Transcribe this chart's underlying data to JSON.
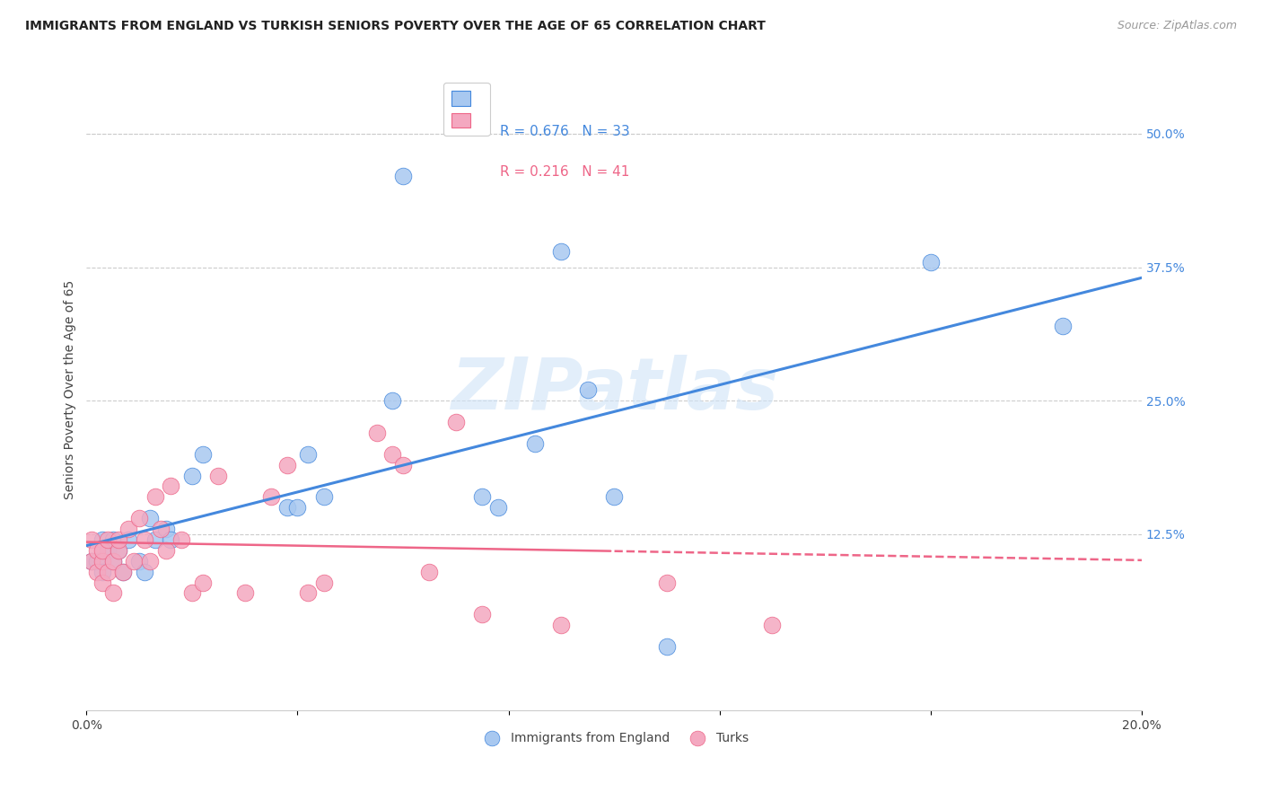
{
  "title": "IMMIGRANTS FROM ENGLAND VS TURKISH SENIORS POVERTY OVER THE AGE OF 65 CORRELATION CHART",
  "source": "Source: ZipAtlas.com",
  "ylabel": "Seniors Poverty Over the Age of 65",
  "xlim": [
    0.0,
    0.2
  ],
  "ylim": [
    -0.04,
    0.56
  ],
  "xtick_positions": [
    0.0,
    0.04,
    0.08,
    0.12,
    0.16,
    0.2
  ],
  "xtick_labels": [
    "0.0%",
    "",
    "",
    "",
    "",
    "20.0%"
  ],
  "ytick_vals": [
    0.5,
    0.375,
    0.25,
    0.125
  ],
  "ytick_labels": [
    "50.0%",
    "37.5%",
    "25.0%",
    "12.5%"
  ],
  "england_R": 0.676,
  "england_N": 33,
  "turks_R": 0.216,
  "turks_N": 41,
  "england_color": "#a8c8f0",
  "turks_color": "#f4a8c0",
  "england_line_color": "#4488dd",
  "turks_line_color": "#ee6688",
  "background_color": "#ffffff",
  "grid_color": "#cccccc",
  "watermark_color": "#d0e4f8",
  "england_x": [
    0.001,
    0.002,
    0.003,
    0.003,
    0.004,
    0.005,
    0.005,
    0.006,
    0.007,
    0.008,
    0.01,
    0.011,
    0.012,
    0.013,
    0.015,
    0.016,
    0.02,
    0.022,
    0.038,
    0.04,
    0.042,
    0.045,
    0.058,
    0.06,
    0.075,
    0.078,
    0.085,
    0.09,
    0.095,
    0.1,
    0.11,
    0.16,
    0.185
  ],
  "england_y": [
    0.1,
    0.1,
    0.09,
    0.12,
    0.11,
    0.1,
    0.12,
    0.11,
    0.09,
    0.12,
    0.1,
    0.09,
    0.14,
    0.12,
    0.13,
    0.12,
    0.18,
    0.2,
    0.15,
    0.15,
    0.2,
    0.16,
    0.25,
    0.46,
    0.16,
    0.15,
    0.21,
    0.39,
    0.26,
    0.16,
    0.02,
    0.38,
    0.32
  ],
  "turks_x": [
    0.001,
    0.001,
    0.002,
    0.002,
    0.003,
    0.003,
    0.003,
    0.004,
    0.004,
    0.005,
    0.005,
    0.006,
    0.006,
    0.007,
    0.008,
    0.009,
    0.01,
    0.011,
    0.012,
    0.013,
    0.014,
    0.015,
    0.016,
    0.018,
    0.02,
    0.022,
    0.025,
    0.03,
    0.035,
    0.038,
    0.042,
    0.045,
    0.055,
    0.058,
    0.06,
    0.065,
    0.07,
    0.075,
    0.09,
    0.11,
    0.13
  ],
  "turks_y": [
    0.1,
    0.12,
    0.09,
    0.11,
    0.1,
    0.08,
    0.11,
    0.09,
    0.12,
    0.1,
    0.07,
    0.11,
    0.12,
    0.09,
    0.13,
    0.1,
    0.14,
    0.12,
    0.1,
    0.16,
    0.13,
    0.11,
    0.17,
    0.12,
    0.07,
    0.08,
    0.18,
    0.07,
    0.16,
    0.19,
    0.07,
    0.08,
    0.22,
    0.2,
    0.19,
    0.09,
    0.23,
    0.05,
    0.04,
    0.08,
    0.04
  ]
}
